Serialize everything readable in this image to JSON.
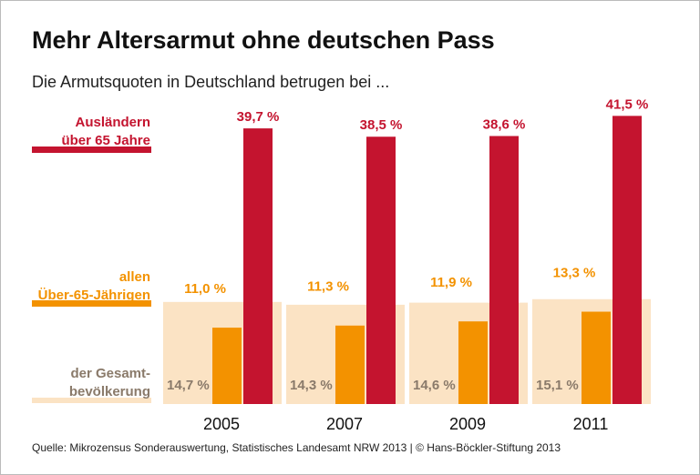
{
  "chart_data": {
    "type": "bar",
    "title": "Mehr Altersarmut ohne deutschen Pass",
    "subtitle": "Die Armutsquoten in Deutschland betrugen bei ...",
    "source": "Quelle: Mikrozensus Sonderauswertung, Statistisches Landesamt NRW 2013 | © Hans-Böckler-Stiftung 2013",
    "categories": [
      "2005",
      "2007",
      "2009",
      "2011"
    ],
    "ylim": [
      0,
      45
    ],
    "series": [
      {
        "name": "der Gesamt-\nbevölkerung",
        "color": "#fbe3c4",
        "values": [
          14.7,
          14.3,
          14.6,
          15.1
        ],
        "value_labels": [
          "14,7 %",
          "14,3 %",
          "14,6 %",
          "15,1 %"
        ]
      },
      {
        "name": "allen\nÜber-65-Jährigen",
        "color": "#f39200",
        "values": [
          11.0,
          11.3,
          11.9,
          13.3
        ],
        "value_labels": [
          "11,0 %",
          "11,3 %",
          "11,9 %",
          "13,3 %"
        ]
      },
      {
        "name": "Ausländern\nüber 65 Jahre",
        "color": "#c4142f",
        "values": [
          39.7,
          38.5,
          38.6,
          41.5
        ],
        "value_labels": [
          "39,7 %",
          "38,5 %",
          "38,6 %",
          "41,5 %"
        ]
      }
    ]
  }
}
